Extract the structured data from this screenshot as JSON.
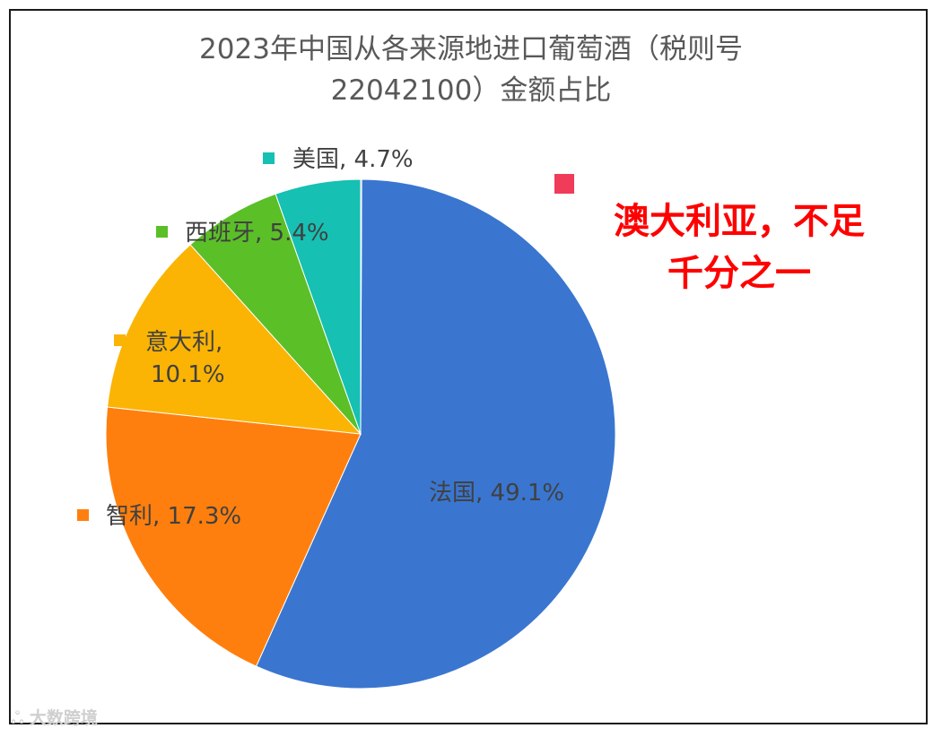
{
  "chart_data": {
    "type": "pie",
    "title": [
      "2023年中国从各来源地进口葡萄酒（税则号",
      "22042100）金额占比"
    ],
    "slices": [
      {
        "label": "法国",
        "value": 49.1,
        "text": "法国, 49.1%",
        "color": "#3a76d0"
      },
      {
        "label": "智利",
        "value": 17.3,
        "text": "智利, 17.3%",
        "color": "#ff7f0e"
      },
      {
        "label": "意大利",
        "value": 10.1,
        "text": [
          "意大利,",
          "10.1%"
        ],
        "color": "#fbb404"
      },
      {
        "label": "西班牙",
        "value": 5.4,
        "text": "西班牙, 5.4%",
        "color": "#5bbf28"
      },
      {
        "label": "美国",
        "value": 4.7,
        "text": "美国, 4.7%",
        "color": "#16c0b3"
      },
      {
        "label": "澳大利亚",
        "value": 0.05,
        "text": "",
        "color": "#f03c5a"
      }
    ],
    "legend": "labels-beside-slices"
  },
  "annotation": [
    "澳大利亚，不足",
    "千分之一"
  ],
  "watermark": "大数跨境"
}
